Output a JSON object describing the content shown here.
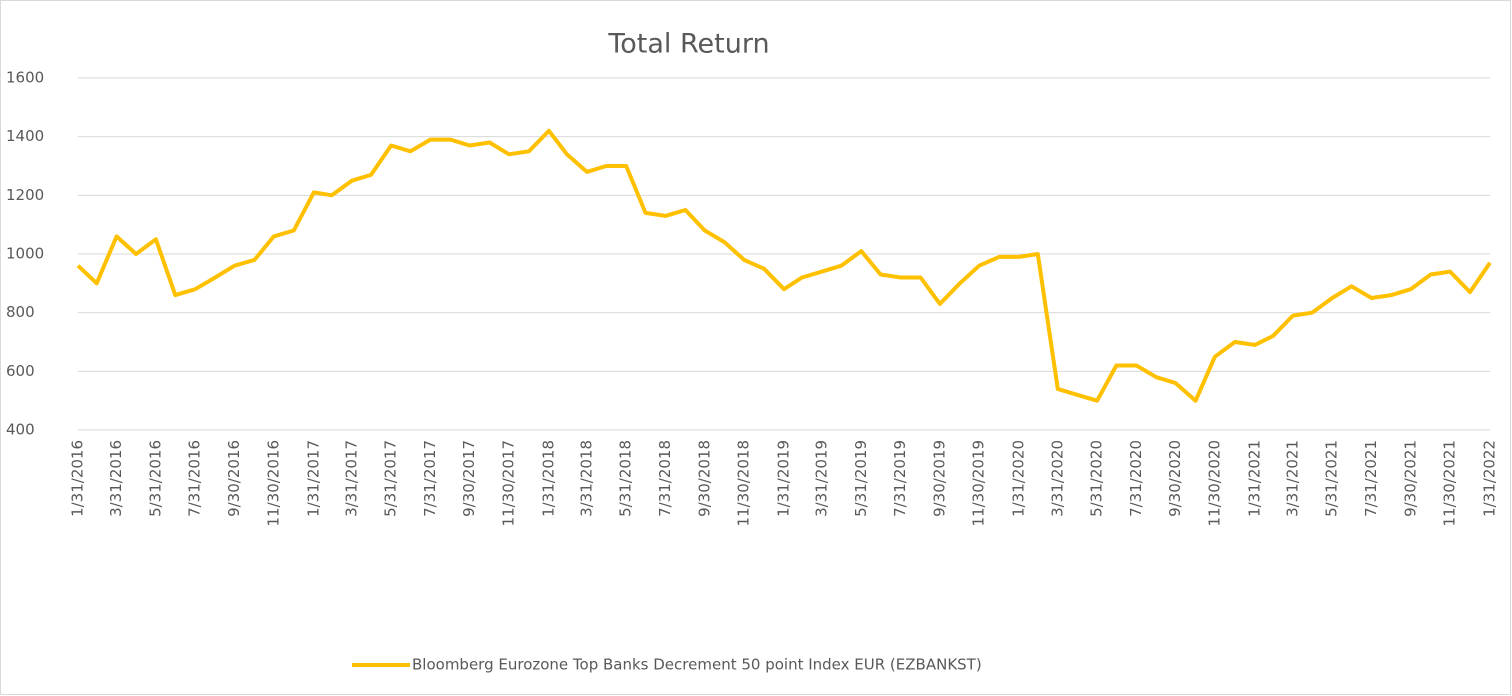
{
  "chart_data": {
    "type": "line",
    "title": "Total Return",
    "x": [
      "1/31/2016",
      "2/29/2016",
      "3/31/2016",
      "4/30/2016",
      "5/31/2016",
      "6/30/2016",
      "7/31/2016",
      "8/31/2016",
      "9/30/2016",
      "10/31/2016",
      "11/30/2016",
      "12/31/2016",
      "1/31/2017",
      "2/28/2017",
      "3/31/2017",
      "4/30/2017",
      "5/31/2017",
      "6/30/2017",
      "7/31/2017",
      "8/31/2017",
      "9/30/2017",
      "10/31/2017",
      "11/30/2017",
      "12/31/2017",
      "1/31/2018",
      "2/28/2018",
      "3/31/2018",
      "4/30/2018",
      "5/31/2018",
      "6/30/2018",
      "7/31/2018",
      "8/31/2018",
      "9/30/2018",
      "10/31/2018",
      "11/30/2018",
      "12/31/2018",
      "1/31/2019",
      "2/28/2019",
      "3/31/2019",
      "4/30/2019",
      "5/31/2019",
      "6/30/2019",
      "7/31/2019",
      "8/31/2019",
      "9/30/2019",
      "10/31/2019",
      "11/30/2019",
      "12/31/2019",
      "1/31/2020",
      "2/29/2020",
      "3/31/2020",
      "4/30/2020",
      "5/31/2020",
      "6/30/2020",
      "7/31/2020",
      "8/31/2020",
      "9/30/2020",
      "10/31/2020",
      "11/30/2020",
      "12/31/2020",
      "1/31/2021",
      "2/28/2021",
      "3/31/2021",
      "4/30/2021",
      "5/31/2021",
      "6/30/2021",
      "7/31/2021",
      "8/31/2021",
      "9/30/2021",
      "10/31/2021",
      "11/30/2021",
      "12/31/2021",
      "1/31/2022"
    ],
    "series": [
      {
        "name": "Bloomberg Eurozone Top Banks Decrement 50 point Index EUR (EZBANKST)",
        "color": "#ffc000",
        "values": [
          960,
          900,
          1060,
          1000,
          1050,
          860,
          880,
          920,
          960,
          980,
          1060,
          1080,
          1210,
          1200,
          1250,
          1270,
          1370,
          1350,
          1390,
          1390,
          1370,
          1380,
          1340,
          1350,
          1420,
          1340,
          1280,
          1300,
          1300,
          1140,
          1130,
          1150,
          1080,
          1040,
          980,
          950,
          880,
          920,
          940,
          960,
          1010,
          930,
          920,
          920,
          830,
          900,
          960,
          990,
          990,
          1000,
          540,
          520,
          500,
          620,
          620,
          580,
          560,
          500,
          650,
          700,
          690,
          720,
          790,
          800,
          850,
          890,
          850,
          860,
          880,
          930,
          940,
          870,
          970
        ]
      }
    ],
    "xticks": [
      "1/31/2016",
      "3/31/2016",
      "5/31/2016",
      "7/31/2016",
      "9/30/2016",
      "11/30/2016",
      "1/31/2017",
      "3/31/2017",
      "5/31/2017",
      "7/31/2017",
      "9/30/2017",
      "11/30/2017",
      "1/31/2018",
      "3/31/2018",
      "5/31/2018",
      "7/31/2018",
      "9/30/2018",
      "11/30/2018",
      "1/31/2019",
      "3/31/2019",
      "5/31/2019",
      "7/31/2019",
      "9/30/2019",
      "11/30/2019",
      "1/31/2020",
      "3/31/2020",
      "5/31/2020",
      "7/31/2020",
      "9/30/2020",
      "11/30/2020",
      "1/31/2021",
      "3/31/2021",
      "5/31/2021",
      "7/31/2021",
      "9/30/2021",
      "11/30/2021",
      "1/31/2022"
    ],
    "xlim": [
      "1/31/2016",
      "1/31/2022"
    ],
    "ylim": [
      400,
      1600
    ],
    "yticks": [
      400,
      600,
      800,
      1000,
      1200,
      1400,
      1600
    ],
    "grid": true,
    "legend": "bottom"
  }
}
